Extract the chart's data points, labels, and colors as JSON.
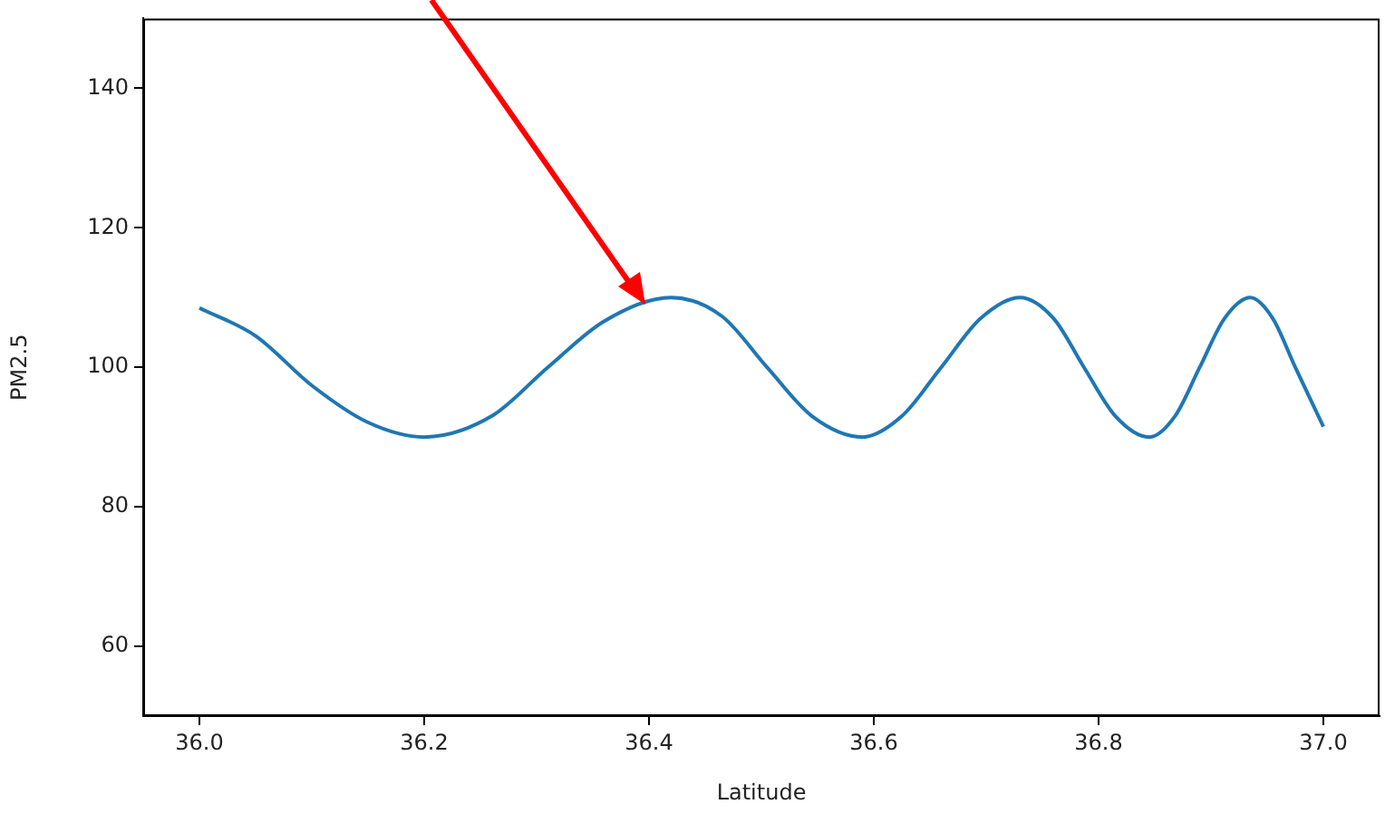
{
  "chart_data": {
    "type": "line",
    "xlabel": "Latitude",
    "ylabel": "PM2.5",
    "xlim": [
      35.95,
      37.05
    ],
    "xticks": [
      {
        "value": 36.0,
        "label": "36.0"
      },
      {
        "value": 36.2,
        "label": "36.2"
      },
      {
        "value": 36.4,
        "label": "36.4"
      },
      {
        "value": 36.6,
        "label": "36.6"
      },
      {
        "value": 36.8,
        "label": "36.8"
      },
      {
        "value": 37.0,
        "label": "37.0"
      }
    ],
    "ylim": [
      50,
      150
    ],
    "yticks": [
      60,
      80,
      100,
      120,
      140
    ],
    "grid": false,
    "legend": false,
    "marker": "none",
    "line_style": "solid",
    "series": [
      {
        "color": "#1f77b4",
        "x": [
          36.0,
          36.05,
          36.1,
          36.15,
          36.2,
          36.26,
          36.31,
          36.36,
          36.42,
          36.465,
          36.505,
          36.545,
          36.59,
          36.625,
          36.66,
          36.695,
          36.73,
          36.76,
          36.787,
          36.815,
          36.845,
          36.868,
          36.89,
          36.912,
          36.935,
          36.955,
          36.975,
          37.0
        ],
        "values": [
          108.5,
          104.5,
          97.4,
          92.1,
          90,
          93,
          100,
          106.6,
          110,
          107.3,
          100,
          93,
          90,
          93,
          100,
          107,
          110,
          107,
          100,
          93,
          90,
          93,
          100,
          107,
          110,
          107,
          100,
          91.5
        ]
      }
    ]
  }
}
